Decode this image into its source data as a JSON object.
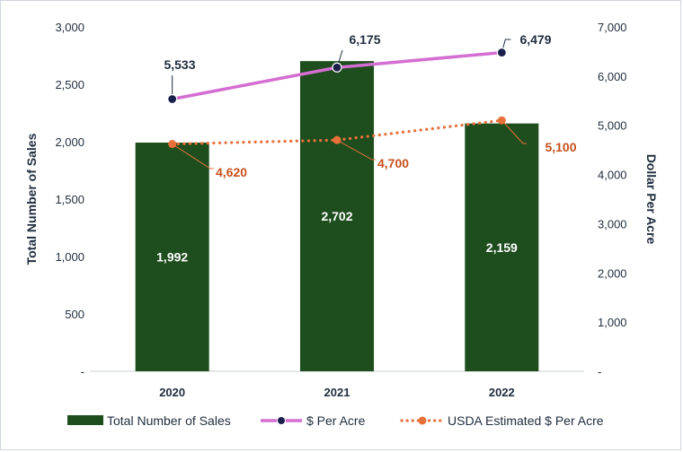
{
  "chart_data": {
    "type": "bar+line",
    "categories": [
      "2020",
      "2021",
      "2022"
    ],
    "bar_series": {
      "name": "Total Number of Sales",
      "values": [
        1992,
        2702,
        2159
      ],
      "labels": [
        "1,992",
        "2,702",
        "2,159"
      ],
      "color": "#1e4d1e"
    },
    "line_series": [
      {
        "name": "$ Per Acre",
        "values": [
          5533,
          6175,
          6479
        ],
        "labels": [
          "5,533",
          "6,175",
          "6,479"
        ],
        "line_color": "#d46ed2",
        "marker_color": "#1a1f4a",
        "style": "solid"
      },
      {
        "name": "USDA Estimated $ Per Acre",
        "values": [
          4620,
          4700,
          5100
        ],
        "labels": [
          "4,620",
          "4,700",
          "5,100"
        ],
        "line_color": "#e8703a",
        "label_color": "#c8501e",
        "style": "dotted"
      }
    ],
    "left_axis": {
      "title": "Total Number of Sales",
      "ylim": [
        0,
        3000
      ],
      "ticks": [
        0,
        500,
        1000,
        1500,
        2000,
        2500,
        3000
      ],
      "tick_labels": [
        "-",
        "500",
        "1,000",
        "1,500",
        "2,000",
        "2,500",
        "3,000"
      ]
    },
    "right_axis": {
      "title": "Dollar Per Acre",
      "ylim": [
        0,
        7000
      ],
      "ticks": [
        0,
        1000,
        2000,
        3000,
        4000,
        5000,
        6000,
        7000
      ],
      "tick_labels": [
        "-",
        "1,000",
        "2,000",
        "3,000",
        "4,000",
        "5,000",
        "6,000",
        "7,000"
      ]
    },
    "legend": [
      "Total Number of Sales",
      "$ Per Acre",
      "USDA Estimated $ Per Acre"
    ],
    "legend_position": "bottom"
  }
}
